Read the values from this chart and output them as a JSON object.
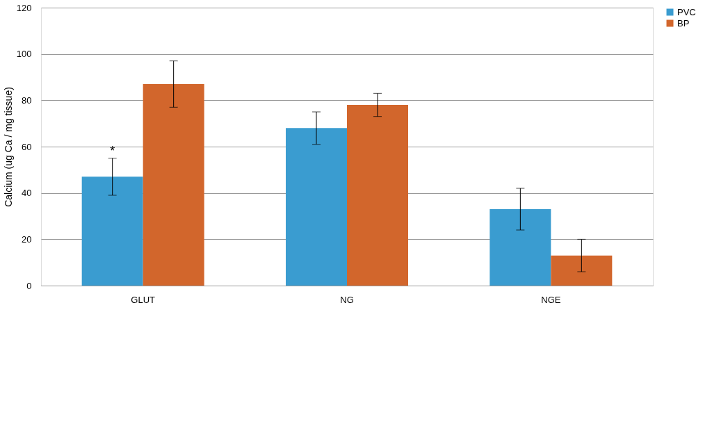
{
  "chart_data": {
    "type": "bar",
    "ylabel": "Calcium (ug Ca / mg tissue)",
    "categories": [
      "GLUT",
      "NG",
      "NGE"
    ],
    "series": [
      {
        "name": "PVC",
        "color": "#3a9cd0",
        "values": [
          47,
          68,
          33
        ],
        "errors": [
          8,
          7,
          9
        ]
      },
      {
        "name": "BP",
        "color": "#d2662c",
        "values": [
          87,
          78,
          13
        ],
        "errors": [
          10,
          5,
          7
        ]
      }
    ],
    "ylim": [
      0,
      120
    ],
    "yticks": [
      0,
      20,
      40,
      60,
      80,
      100,
      120
    ],
    "grid": "y",
    "legend": "right",
    "annotations": [
      {
        "text": "*",
        "x": "GLUT",
        "y": 55
      }
    ]
  }
}
